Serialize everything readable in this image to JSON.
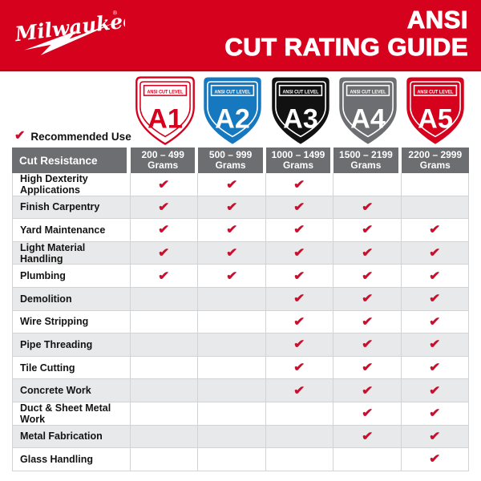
{
  "banner": {
    "brand": "Milwaukee",
    "registered_mark": "®",
    "title_line1": "ANSI",
    "title_line2": "CUT RATING GUIDE",
    "background_color": "#D6011C"
  },
  "legend": {
    "check": "✔",
    "label": "Recommended Use",
    "check_color": "#C8102E"
  },
  "shields": {
    "badge_label": "ANSI CUT LEVEL",
    "items": [
      {
        "level": "A1",
        "fill": "#FFFFFF",
        "accent": "#D6011C"
      },
      {
        "level": "A2",
        "fill": "#1678BE",
        "accent": "#FFFFFF"
      },
      {
        "level": "A3",
        "fill": "#111111",
        "accent": "#FFFFFF"
      },
      {
        "level": "A4",
        "fill": "#6D6E71",
        "accent": "#FFFFFF"
      },
      {
        "level": "A5",
        "fill": "#D6011C",
        "accent": "#FFFFFF"
      }
    ]
  },
  "table": {
    "corner_header": "Cut Resistance",
    "unit": "Grams",
    "header_bg": "#6D6E71",
    "column_ranges": [
      "200 – 499",
      "500 – 999",
      "1000 – 1499",
      "1500 – 2199",
      "2200 – 2999"
    ]
  },
  "chart_data": {
    "type": "table",
    "title": "ANSI CUT RATING GUIDE",
    "legend": "✔ = Recommended Use",
    "columns": [
      "A1",
      "A2",
      "A3",
      "A4",
      "A5"
    ],
    "cut_resistance_grams": [
      "200 – 499",
      "500 – 999",
      "1000 – 1499",
      "1500 – 2199",
      "2200 – 2999"
    ],
    "rows": [
      {
        "application": "High Dexterity Applications",
        "recommended": [
          true,
          true,
          true,
          false,
          false
        ]
      },
      {
        "application": "Finish Carpentry",
        "recommended": [
          true,
          true,
          true,
          true,
          false
        ]
      },
      {
        "application": "Yard Maintenance",
        "recommended": [
          true,
          true,
          true,
          true,
          true
        ]
      },
      {
        "application": "Light Material Handling",
        "recommended": [
          true,
          true,
          true,
          true,
          true
        ]
      },
      {
        "application": "Plumbing",
        "recommended": [
          true,
          true,
          true,
          true,
          true
        ]
      },
      {
        "application": "Demolition",
        "recommended": [
          false,
          false,
          true,
          true,
          true
        ]
      },
      {
        "application": "Wire Stripping",
        "recommended": [
          false,
          false,
          true,
          true,
          true
        ]
      },
      {
        "application": "Pipe Threading",
        "recommended": [
          false,
          false,
          true,
          true,
          true
        ]
      },
      {
        "application": "Tile Cutting",
        "recommended": [
          false,
          false,
          true,
          true,
          true
        ]
      },
      {
        "application": "Concrete Work",
        "recommended": [
          false,
          false,
          true,
          true,
          true
        ]
      },
      {
        "application": "Duct & Sheet Metal Work",
        "recommended": [
          false,
          false,
          false,
          true,
          true
        ]
      },
      {
        "application": "Metal Fabrication",
        "recommended": [
          false,
          false,
          false,
          true,
          true
        ]
      },
      {
        "application": "Glass Handling",
        "recommended": [
          false,
          false,
          false,
          false,
          true
        ]
      }
    ]
  }
}
